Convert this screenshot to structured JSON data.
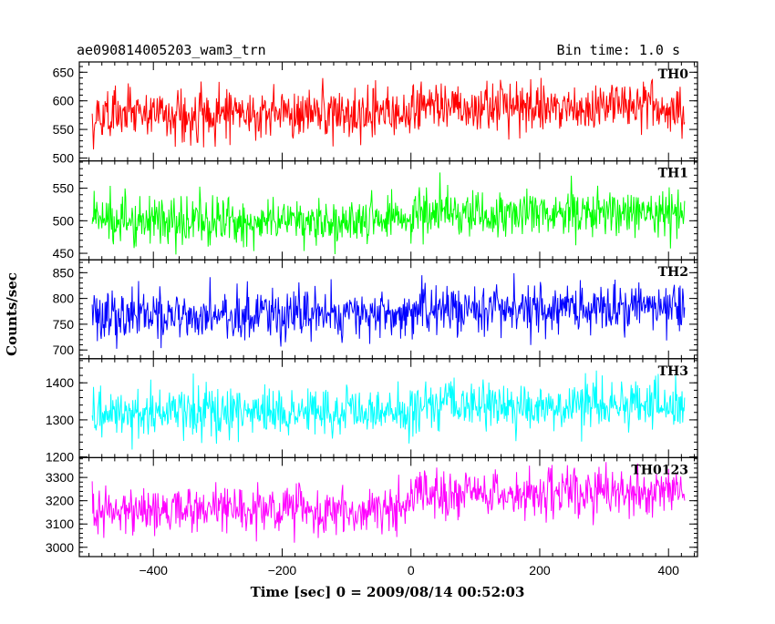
{
  "header": {
    "title": "ae090814005203_wam3_trn",
    "bin_time": "Bin time: 1.0 s"
  },
  "chart_data": {
    "type": "line",
    "title": "ae090814005203_wam3_trn",
    "xlabel": "Time [sec] 0 = 2009/08/14 00:52:03",
    "ylabel": "Counts/sec",
    "xlim": [
      -515,
      445
    ],
    "x_range": [
      -495,
      425
    ],
    "x_step": 1,
    "x_ticks": [
      -400,
      -200,
      0,
      200,
      400
    ],
    "x_tick_labels": [
      "−400",
      "−200",
      "0",
      "200",
      "400"
    ],
    "grid": false,
    "panels": [
      {
        "name": "TH0",
        "color": "#ff0000",
        "ylim": [
          495,
          668
        ],
        "y_ticks": [
          500,
          550,
          600,
          650
        ],
        "y_tick_labels": [
          "500",
          "550",
          "600",
          "650"
        ],
        "mean_before": 577,
        "mean_after": 588,
        "std": 22
      },
      {
        "name": "TH1",
        "color": "#00ff00",
        "ylim": [
          440,
          592
        ],
        "y_ticks": [
          450,
          500,
          550
        ],
        "y_tick_labels": [
          "450",
          "500",
          "550"
        ],
        "mean_before": 500,
        "mean_after": 512,
        "std": 18
      },
      {
        "name": "TH2",
        "color": "#0000ff",
        "ylim": [
          683,
          875
        ],
        "y_ticks": [
          700,
          750,
          800,
          850
        ],
        "y_tick_labels": [
          "700",
          "750",
          "800",
          "850"
        ],
        "mean_before": 768,
        "mean_after": 780,
        "std": 24
      },
      {
        "name": "TH3",
        "color": "#00ffff",
        "ylim": [
          1198,
          1465
        ],
        "y_ticks": [
          1200,
          1300,
          1400
        ],
        "y_tick_labels": [
          "1200",
          "1300",
          "1400"
        ],
        "mean_before": 1318,
        "mean_after": 1340,
        "std": 33
      },
      {
        "name": "TH0123",
        "color": "#ff00ff",
        "ylim": [
          2960,
          3385
        ],
        "y_ticks": [
          3000,
          3100,
          3200,
          3300
        ],
        "y_tick_labels": [
          "3000",
          "3100",
          "3200",
          "3300"
        ],
        "mean_before": 3165,
        "mean_after": 3230,
        "std": 50
      }
    ]
  }
}
